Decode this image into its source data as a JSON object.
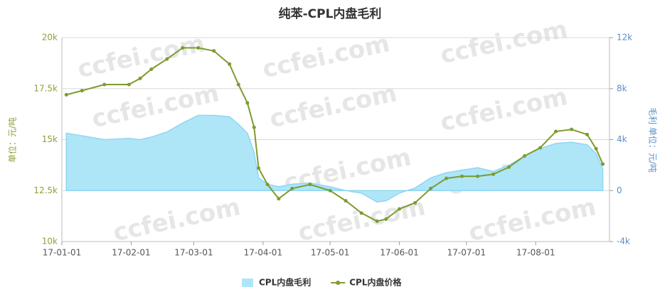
{
  "chart_data": {
    "type": "line",
    "title": "纯苯-CPL内盘毛利",
    "watermark": "ccfei.com",
    "y_label": "单位：元/吨",
    "y2_label": "毛利 单位：元/吨",
    "x": [
      "17-01-03",
      "17-01-10",
      "17-01-20",
      "17-01-31",
      "17-02-05",
      "17-02-10",
      "17-02-17",
      "17-02-24",
      "17-03-03",
      "17-03-10",
      "17-03-17",
      "17-03-21",
      "17-03-25",
      "17-03-28",
      "17-03-30",
      "17-04-03",
      "17-04-08",
      "17-04-14",
      "17-04-22",
      "17-05-01",
      "17-05-08",
      "17-05-15",
      "17-05-22",
      "17-05-26",
      "17-06-01",
      "17-06-08",
      "17-06-15",
      "17-06-22",
      "17-06-29",
      "17-07-06",
      "17-07-13",
      "17-07-20",
      "17-07-27",
      "17-08-03",
      "17-08-10",
      "17-08-17",
      "17-08-24",
      "17-08-28",
      "17-08-31"
    ],
    "xlim": [
      "17-01-01",
      "17-09-03"
    ],
    "xticks": [
      "17-01-01",
      "17-02-01",
      "17-03-01",
      "17-04-01",
      "17-05-01",
      "17-06-01",
      "17-07-01",
      "17-08-01"
    ],
    "ylim": [
      10000,
      20000
    ],
    "yticks": [
      {
        "value": 10000,
        "label": "10k"
      },
      {
        "value": 12500,
        "label": "12.5k"
      },
      {
        "value": 15000,
        "label": "15k"
      },
      {
        "value": 17500,
        "label": "17.5k"
      },
      {
        "value": 20000,
        "label": "20k"
      }
    ],
    "y2lim": [
      -4000,
      12000
    ],
    "y2ticks": [
      {
        "value": -4000,
        "label": "-4k"
      },
      0,
      {
        "value": 4000,
        "label": "4k"
      },
      {
        "value": 8000,
        "label": "8k"
      },
      {
        "value": 12000,
        "label": "12k"
      }
    ],
    "grid": true,
    "legend": "bottom",
    "series": [
      {
        "name": "CPL内盘毛利",
        "type": "area",
        "axis": "y2",
        "color": "#aee6f8",
        "line_color": "#8fd6f2",
        "values": [
          4500,
          4300,
          4000,
          4100,
          4000,
          4200,
          4600,
          5300,
          5900,
          5900,
          5800,
          5200,
          4500,
          3000,
          1000,
          500,
          300,
          500,
          600,
          300,
          0,
          -200,
          -900,
          -800,
          -200,
          200,
          1000,
          1400,
          1600,
          1800,
          1500,
          2000,
          2700,
          3300,
          3700,
          3800,
          3600,
          2900,
          1700
        ]
      },
      {
        "name": "CPL内盘价格",
        "type": "line",
        "axis": "y",
        "color": "#7d9b30",
        "values": [
          17200,
          17400,
          17700,
          17700,
          18000,
          18450,
          18950,
          19500,
          19500,
          19350,
          18700,
          17700,
          16800,
          15600,
          13600,
          12800,
          12100,
          12600,
          12800,
          12500,
          12000,
          11400,
          11000,
          11100,
          11600,
          11900,
          12600,
          13100,
          13200,
          13200,
          13300,
          13650,
          14200,
          14600,
          15400,
          15500,
          15250,
          14550,
          13800
        ]
      }
    ]
  }
}
